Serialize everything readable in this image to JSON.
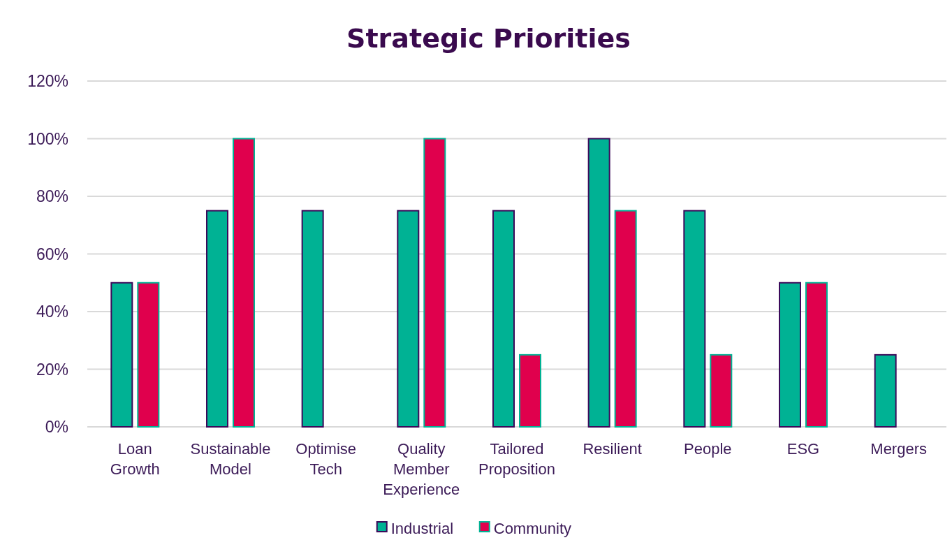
{
  "chart_data": {
    "type": "bar",
    "title": "Strategic Priorities",
    "categories": [
      "Loan Growth",
      "Sustainable Model",
      "Optimise Tech",
      "Quality Member Experience",
      "Tailored Proposition",
      "Resilient",
      "People",
      "ESG",
      "Mergers"
    ],
    "series": [
      {
        "name": "Industrial",
        "color": "#00b294",
        "values": [
          50,
          75,
          75,
          75,
          75,
          100,
          75,
          50,
          25
        ]
      },
      {
        "name": "Community",
        "color": "#e0004d",
        "values": [
          50,
          100,
          0,
          100,
          25,
          75,
          25,
          50,
          0
        ]
      }
    ],
    "ylim": [
      0,
      120
    ],
    "yticks": [
      {
        "value": 0,
        "label": "0%"
      },
      {
        "value": 20,
        "label": "20%"
      },
      {
        "value": 40,
        "label": "40%"
      },
      {
        "value": 60,
        "label": "60%"
      },
      {
        "value": 80,
        "label": "80%"
      },
      {
        "value": 100,
        "label": "100%"
      },
      {
        "value": 120,
        "label": "120%"
      }
    ],
    "grid": "y",
    "legend": "bottom"
  }
}
